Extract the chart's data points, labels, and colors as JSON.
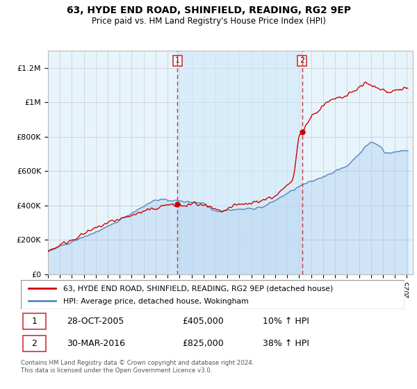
{
  "title": "63, HYDE END ROAD, SHINFIELD, READING, RG2 9EP",
  "subtitle": "Price paid vs. HM Land Registry's House Price Index (HPI)",
  "ylim": [
    0,
    1300000
  ],
  "yticks": [
    0,
    200000,
    400000,
    600000,
    800000,
    1000000,
    1200000
  ],
  "ytick_labels": [
    "£0",
    "£200K",
    "£400K",
    "£600K",
    "£800K",
    "£1M",
    "£1.2M"
  ],
  "sale1_date_num": 2005.82,
  "sale1_price": 405000,
  "sale2_date_num": 2016.24,
  "sale2_price": 825000,
  "sale_color": "#cc0000",
  "hpi_color": "#5588bb",
  "hpi_fill_alpha": 0.25,
  "hpi_fill_color": "#aaccee",
  "shade_color": "#ddeeff",
  "vline_color": "#cc3333",
  "legend_label_sale": "63, HYDE END ROAD, SHINFIELD, READING, RG2 9EP (detached house)",
  "legend_label_hpi": "HPI: Average price, detached house, Wokingham",
  "note1_num": "1",
  "note1_date": "28-OCT-2005",
  "note1_price": "£405,000",
  "note1_hpi": "10% ↑ HPI",
  "note2_num": "2",
  "note2_date": "30-MAR-2016",
  "note2_price": "£825,000",
  "note2_hpi": "38% ↑ HPI",
  "footnote1": "Contains HM Land Registry data © Crown copyright and database right 2024.",
  "footnote2": "This data is licensed under the Open Government Licence v3.0.",
  "xstart": 1995,
  "xend": 2025.5
}
